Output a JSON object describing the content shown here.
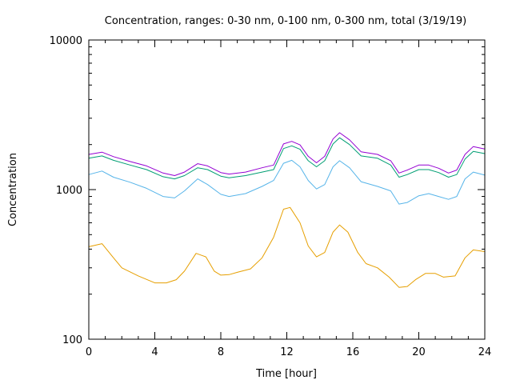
{
  "chart_data": {
    "type": "line",
    "title": "Concentration, ranges: 0-30 nm, 0-100 nm, 0-300 nm, total (3/19/19)",
    "xlabel": "Time [hour]",
    "ylabel": "Concentration",
    "xlim": [
      0,
      24
    ],
    "ylim": [
      100,
      10000
    ],
    "yscale": "log",
    "grid": false,
    "x_ticks": [
      0,
      4,
      8,
      12,
      16,
      20,
      24
    ],
    "x_tick_labels": [
      "0",
      "4",
      "8",
      "12",
      "16",
      "20",
      "24"
    ],
    "y_ticks": [
      100,
      1000,
      10000
    ],
    "y_tick_labels": [
      "100",
      "1000",
      "10000"
    ],
    "series": [
      {
        "color": "#e69f00",
        "points": [
          [
            0,
            415
          ],
          [
            0.8,
            435
          ],
          [
            1.5,
            350
          ],
          [
            2,
            300
          ],
          [
            3,
            265
          ],
          [
            4,
            238
          ],
          [
            4.7,
            238
          ],
          [
            5.3,
            250
          ],
          [
            5.8,
            285
          ],
          [
            6.5,
            375
          ],
          [
            7.1,
            355
          ],
          [
            7.6,
            285
          ],
          [
            8,
            268
          ],
          [
            8.5,
            270
          ],
          [
            9,
            280
          ],
          [
            9.8,
            295
          ],
          [
            10.5,
            350
          ],
          [
            11.2,
            480
          ],
          [
            11.8,
            740
          ],
          [
            12.2,
            760
          ],
          [
            12.8,
            600
          ],
          [
            13.3,
            420
          ],
          [
            13.8,
            355
          ],
          [
            14.3,
            380
          ],
          [
            14.8,
            520
          ],
          [
            15.2,
            580
          ],
          [
            15.7,
            520
          ],
          [
            16.3,
            380
          ],
          [
            16.8,
            320
          ],
          [
            17.5,
            300
          ],
          [
            18.2,
            260
          ],
          [
            18.8,
            222
          ],
          [
            19.3,
            225
          ],
          [
            19.8,
            250
          ],
          [
            20.4,
            275
          ],
          [
            21,
            275
          ],
          [
            21.5,
            260
          ],
          [
            22.2,
            265
          ],
          [
            22.8,
            350
          ],
          [
            23.3,
            395
          ],
          [
            24,
            385
          ]
        ]
      },
      {
        "color": "#56b4e9",
        "points": [
          [
            0,
            1260
          ],
          [
            0.8,
            1330
          ],
          [
            1.5,
            1210
          ],
          [
            2.5,
            1120
          ],
          [
            3.5,
            1020
          ],
          [
            4.5,
            900
          ],
          [
            5.2,
            880
          ],
          [
            5.8,
            980
          ],
          [
            6.6,
            1180
          ],
          [
            7.2,
            1080
          ],
          [
            8,
            930
          ],
          [
            8.5,
            900
          ],
          [
            9.5,
            940
          ],
          [
            10.5,
            1050
          ],
          [
            11.2,
            1150
          ],
          [
            11.8,
            1500
          ],
          [
            12.3,
            1570
          ],
          [
            12.8,
            1420
          ],
          [
            13.3,
            1150
          ],
          [
            13.8,
            1010
          ],
          [
            14.3,
            1080
          ],
          [
            14.8,
            1420
          ],
          [
            15.2,
            1560
          ],
          [
            15.8,
            1400
          ],
          [
            16.5,
            1130
          ],
          [
            17.5,
            1050
          ],
          [
            18.3,
            980
          ],
          [
            18.8,
            800
          ],
          [
            19.3,
            820
          ],
          [
            20,
            910
          ],
          [
            20.6,
            940
          ],
          [
            21.2,
            900
          ],
          [
            21.8,
            860
          ],
          [
            22.3,
            900
          ],
          [
            22.8,
            1180
          ],
          [
            23.3,
            1310
          ],
          [
            24,
            1250
          ]
        ]
      },
      {
        "color": "#009e73",
        "points": [
          [
            0,
            1620
          ],
          [
            0.8,
            1680
          ],
          [
            1.5,
            1570
          ],
          [
            2.5,
            1460
          ],
          [
            3.5,
            1360
          ],
          [
            4.5,
            1220
          ],
          [
            5.2,
            1180
          ],
          [
            5.8,
            1240
          ],
          [
            6.6,
            1400
          ],
          [
            7.2,
            1360
          ],
          [
            8,
            1230
          ],
          [
            8.5,
            1200
          ],
          [
            9.5,
            1240
          ],
          [
            10.5,
            1310
          ],
          [
            11.2,
            1360
          ],
          [
            11.8,
            1880
          ],
          [
            12.3,
            1960
          ],
          [
            12.8,
            1860
          ],
          [
            13.3,
            1560
          ],
          [
            13.8,
            1420
          ],
          [
            14.3,
            1560
          ],
          [
            14.8,
            2020
          ],
          [
            15.2,
            2220
          ],
          [
            15.8,
            2000
          ],
          [
            16.5,
            1680
          ],
          [
            17.5,
            1620
          ],
          [
            18.3,
            1460
          ],
          [
            18.8,
            1210
          ],
          [
            19.3,
            1260
          ],
          [
            20,
            1360
          ],
          [
            20.6,
            1360
          ],
          [
            21.2,
            1300
          ],
          [
            21.8,
            1210
          ],
          [
            22.3,
            1260
          ],
          [
            22.8,
            1600
          ],
          [
            23.3,
            1800
          ],
          [
            24,
            1740
          ]
        ]
      },
      {
        "color": "#9400d3",
        "points": [
          [
            0,
            1720
          ],
          [
            0.8,
            1780
          ],
          [
            1.5,
            1660
          ],
          [
            2.5,
            1540
          ],
          [
            3.5,
            1440
          ],
          [
            4.5,
            1290
          ],
          [
            5.2,
            1240
          ],
          [
            5.8,
            1310
          ],
          [
            6.6,
            1490
          ],
          [
            7.2,
            1440
          ],
          [
            8,
            1300
          ],
          [
            8.5,
            1270
          ],
          [
            9.5,
            1310
          ],
          [
            10.5,
            1400
          ],
          [
            11.2,
            1460
          ],
          [
            11.8,
            2020
          ],
          [
            12.3,
            2100
          ],
          [
            12.8,
            1990
          ],
          [
            13.3,
            1670
          ],
          [
            13.8,
            1510
          ],
          [
            14.3,
            1670
          ],
          [
            14.8,
            2180
          ],
          [
            15.2,
            2400
          ],
          [
            15.8,
            2150
          ],
          [
            16.5,
            1790
          ],
          [
            17.5,
            1720
          ],
          [
            18.3,
            1560
          ],
          [
            18.8,
            1290
          ],
          [
            19.3,
            1350
          ],
          [
            20,
            1460
          ],
          [
            20.6,
            1460
          ],
          [
            21.2,
            1390
          ],
          [
            21.8,
            1290
          ],
          [
            22.3,
            1350
          ],
          [
            22.8,
            1720
          ],
          [
            23.3,
            1940
          ],
          [
            24,
            1870
          ]
        ]
      }
    ]
  }
}
